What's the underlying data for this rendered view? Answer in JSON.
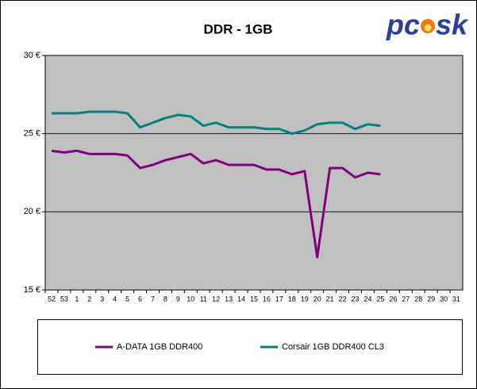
{
  "logo": [
    "pc",
    "sk"
  ],
  "chart_data": {
    "type": "line",
    "title": "DDR - 1GB",
    "categories": [
      "52",
      "53",
      "1",
      "2",
      "3",
      "4",
      "5",
      "6",
      "7",
      "8",
      "9",
      "10",
      "11",
      "12",
      "13",
      "14",
      "15",
      "16",
      "17",
      "18",
      "19",
      "20",
      "21",
      "22",
      "23",
      "24",
      "25",
      "26",
      "27",
      "28",
      "29",
      "30",
      "31"
    ],
    "series": [
      {
        "name": "A-DATA 1GB DDR400",
        "color": "#800080",
        "values": [
          23.9,
          23.8,
          23.9,
          23.7,
          23.7,
          23.7,
          23.6,
          22.8,
          23.0,
          23.3,
          23.5,
          23.7,
          23.1,
          23.3,
          23.0,
          23.0,
          23.0,
          22.7,
          22.7,
          22.4,
          22.6,
          17.1,
          22.8,
          22.8,
          22.2,
          22.5,
          22.4,
          null,
          null,
          null,
          null,
          null,
          null
        ]
      },
      {
        "name": "Corsair 1GB DDR400 CL3",
        "color": "#008080",
        "values": [
          26.3,
          26.3,
          26.3,
          26.4,
          26.4,
          26.4,
          26.3,
          25.4,
          25.7,
          26.0,
          26.2,
          26.1,
          25.5,
          25.7,
          25.4,
          25.4,
          25.4,
          25.3,
          25.3,
          25.0,
          25.2,
          25.6,
          25.7,
          25.7,
          25.3,
          25.6,
          25.5,
          null,
          null,
          null,
          null,
          null,
          null
        ]
      }
    ],
    "ylim": [
      15,
      30
    ],
    "yticks": [
      {
        "value": 15,
        "label": "15 €"
      },
      {
        "value": 20,
        "label": "20 €"
      },
      {
        "value": 25,
        "label": "25 €"
      },
      {
        "value": 30,
        "label": "30 €"
      }
    ],
    "grid": true,
    "plot_color": "#c0c0c0",
    "legend": "bottom"
  }
}
